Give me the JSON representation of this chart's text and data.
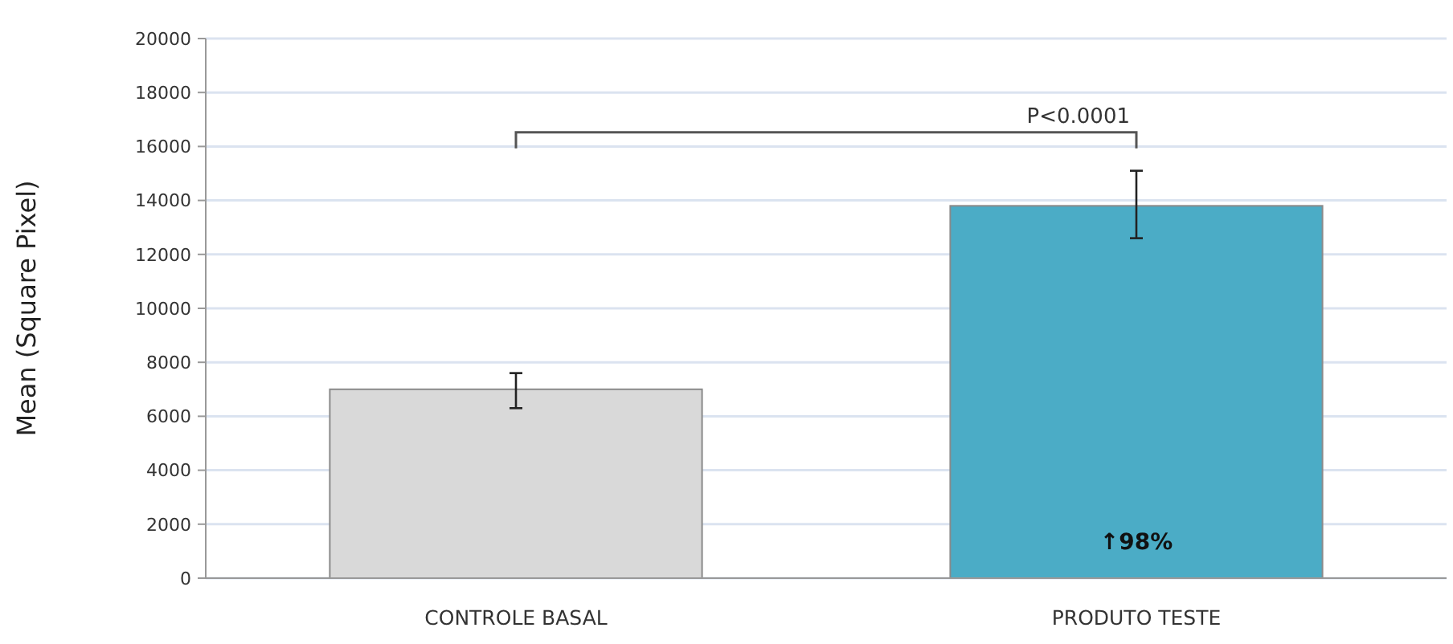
{
  "chart_data": {
    "type": "bar",
    "ylabel": "Mean (Square Pixel)",
    "categories": [
      "CONTROLE BASAL",
      "PRODUTO TESTE"
    ],
    "values": [
      7000,
      13800
    ],
    "colors": [
      "#d9d9d9",
      "#4bacc6"
    ],
    "errors": [
      [
        6300,
        7600
      ],
      [
        12600,
        15100
      ]
    ],
    "ylim": [
      0,
      20000
    ],
    "yticks": [
      0,
      2000,
      4000,
      6000,
      8000,
      10000,
      12000,
      14000,
      16000,
      18000,
      20000
    ],
    "grid": "y",
    "annotations": [
      "P<0.0001",
      "↑98%"
    ]
  }
}
